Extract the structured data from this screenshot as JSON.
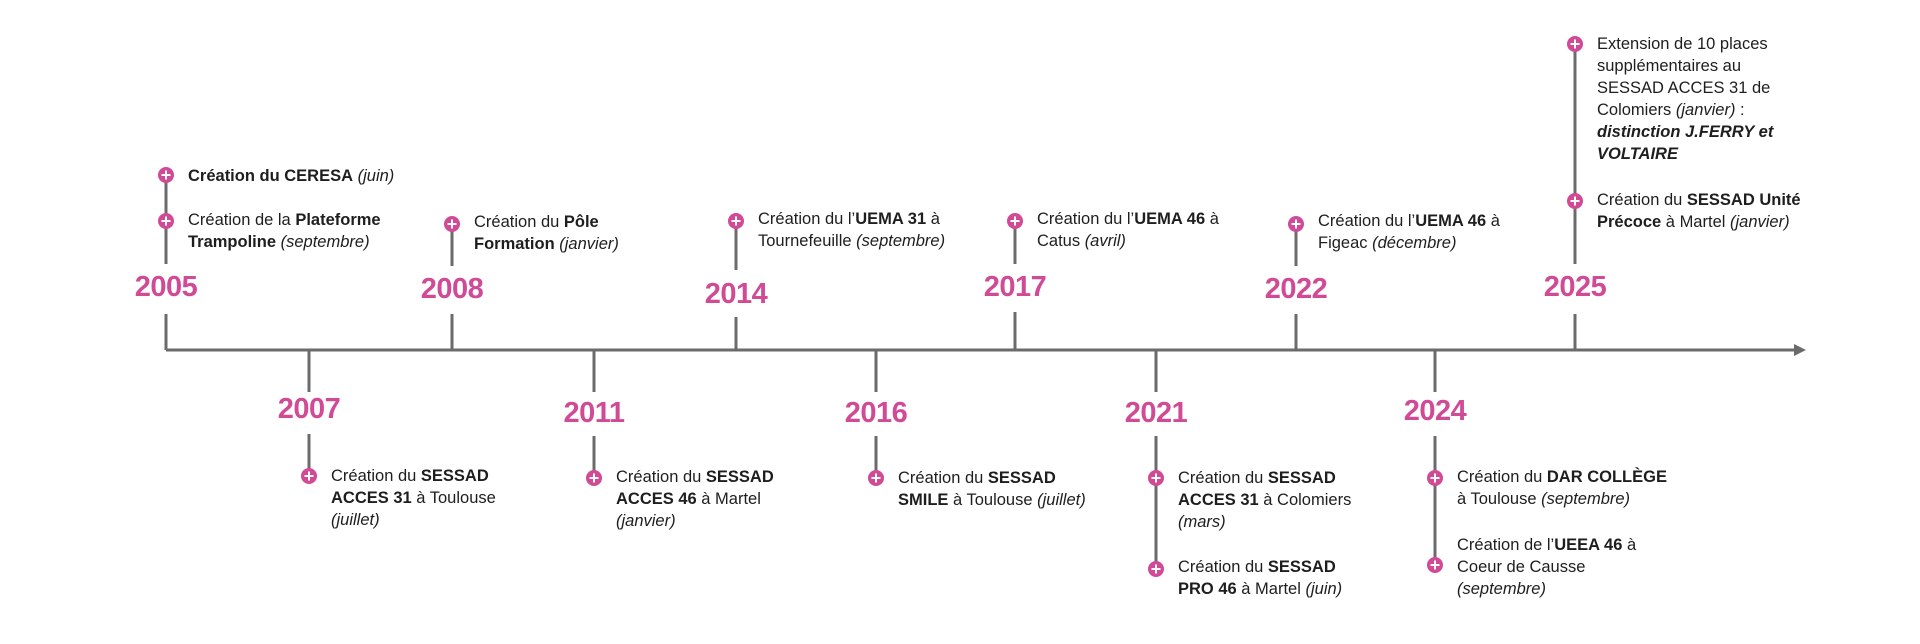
{
  "theme": {
    "accent": "#d14a96",
    "line": "#6b6b6b",
    "text": "#1e1e1e"
  },
  "marker_icon": "plus-circle-icon",
  "arrow_icon": "arrow-right-icon",
  "milestones": [
    {
      "year": "2005",
      "side": "above",
      "events": [
        {
          "parts": [
            {
              "t": "Création du CERESA",
              "b": true
            },
            {
              "t": " "
            },
            {
              "t": "(juin)",
              "i": true
            }
          ]
        },
        {
          "parts": [
            {
              "t": "Création de la "
            },
            {
              "t": "Plateforme",
              "b": true
            },
            {
              "br": true
            },
            {
              "t": "Trampoline",
              "b": true
            },
            {
              "t": " "
            },
            {
              "t": "(septembre)",
              "i": true
            }
          ]
        }
      ]
    },
    {
      "year": "2007",
      "side": "below",
      "events": [
        {
          "parts": [
            {
              "t": "Création du "
            },
            {
              "t": "SESSAD",
              "b": true
            },
            {
              "br": true
            },
            {
              "t": "ACCES 31",
              "b": true
            },
            {
              "t": " à Toulouse"
            },
            {
              "br": true
            },
            {
              "t": "(juillet)",
              "i": true
            }
          ]
        }
      ]
    },
    {
      "year": "2008",
      "side": "above",
      "events": [
        {
          "parts": [
            {
              "t": "Création du "
            },
            {
              "t": "Pôle",
              "b": true
            },
            {
              "br": true
            },
            {
              "t": "Formation",
              "b": true
            },
            {
              "t": " "
            },
            {
              "t": "(janvier)",
              "i": true
            }
          ]
        }
      ]
    },
    {
      "year": "2011",
      "side": "below",
      "events": [
        {
          "parts": [
            {
              "t": "Création du "
            },
            {
              "t": "SESSAD",
              "b": true
            },
            {
              "br": true
            },
            {
              "t": "ACCES 46",
              "b": true
            },
            {
              "t": " à Martel"
            },
            {
              "br": true
            },
            {
              "t": "(janvier)",
              "i": true
            }
          ]
        }
      ]
    },
    {
      "year": "2014",
      "side": "above",
      "events": [
        {
          "parts": [
            {
              "t": "Création du l’"
            },
            {
              "t": "UEMA 31",
              "b": true
            },
            {
              "t": " à"
            },
            {
              "br": true
            },
            {
              "t": "Tournefeuille "
            },
            {
              "t": "(septembre)",
              "i": true
            }
          ]
        }
      ]
    },
    {
      "year": "2016",
      "side": "below",
      "events": [
        {
          "parts": [
            {
              "t": "Création du "
            },
            {
              "t": "SESSAD",
              "b": true
            },
            {
              "br": true
            },
            {
              "t": "SMILE",
              "b": true
            },
            {
              "t": " à Toulouse "
            },
            {
              "t": "(juillet)",
              "i": true
            }
          ]
        }
      ]
    },
    {
      "year": "2017",
      "side": "above",
      "events": [
        {
          "parts": [
            {
              "t": "Création du l’"
            },
            {
              "t": "UEMA 46",
              "b": true
            },
            {
              "t": " à"
            },
            {
              "br": true
            },
            {
              "t": "Catus "
            },
            {
              "t": "(avril)",
              "i": true
            }
          ]
        }
      ]
    },
    {
      "year": "2021",
      "side": "below",
      "events": [
        {
          "parts": [
            {
              "t": "Création du "
            },
            {
              "t": "SESSAD",
              "b": true
            },
            {
              "br": true
            },
            {
              "t": "ACCES 31",
              "b": true
            },
            {
              "t": " à Colomiers"
            },
            {
              "br": true
            },
            {
              "t": "(mars)",
              "i": true
            }
          ]
        },
        {
          "parts": [
            {
              "t": "Création du "
            },
            {
              "t": "SESSAD",
              "b": true
            },
            {
              "br": true
            },
            {
              "t": "PRO 46",
              "b": true
            },
            {
              "t": " à Martel "
            },
            {
              "t": "(juin)",
              "i": true
            }
          ]
        }
      ]
    },
    {
      "year": "2022",
      "side": "above",
      "events": [
        {
          "parts": [
            {
              "t": "Création du l’"
            },
            {
              "t": "UEMA 46",
              "b": true
            },
            {
              "t": " à"
            },
            {
              "br": true
            },
            {
              "t": "Figeac "
            },
            {
              "t": "(décembre)",
              "i": true
            }
          ]
        }
      ]
    },
    {
      "year": "2024",
      "side": "below",
      "events": [
        {
          "parts": [
            {
              "t": "Création du "
            },
            {
              "t": "DAR COLLÈGE",
              "b": true
            },
            {
              "br": true
            },
            {
              "t": "à Toulouse "
            },
            {
              "t": "(septembre)",
              "i": true
            }
          ]
        },
        {
          "parts": [
            {
              "t": "Création de l’"
            },
            {
              "t": "UEEA 46",
              "b": true
            },
            {
              "t": " à"
            },
            {
              "br": true
            },
            {
              "t": "Coeur de Causse"
            },
            {
              "br": true
            },
            {
              "t": "(septembre)",
              "i": true
            }
          ]
        }
      ]
    },
    {
      "year": "2025",
      "side": "above",
      "events": [
        {
          "parts": [
            {
              "t": "Extension de 10 places"
            },
            {
              "br": true
            },
            {
              "t": "supplémentaires au"
            },
            {
              "br": true
            },
            {
              "t": "SESSAD ACCES 31 de"
            },
            {
              "br": true
            },
            {
              "t": "Colomiers "
            },
            {
              "t": "(janvier)",
              "i": true
            },
            {
              "t": " :"
            },
            {
              "br": true
            },
            {
              "t": "distinction J.FERRY et",
              "b": true,
              "i": true
            },
            {
              "br": true
            },
            {
              "t": "VOLTAIRE",
              "b": true,
              "i": true
            }
          ]
        },
        {
          "parts": [
            {
              "t": "Création du "
            },
            {
              "t": "SESSAD Unité",
              "b": true
            },
            {
              "br": true
            },
            {
              "t": "Précoce",
              "b": true
            },
            {
              "t": " à Martel "
            },
            {
              "t": "(janvier)",
              "i": true
            }
          ]
        }
      ]
    }
  ]
}
